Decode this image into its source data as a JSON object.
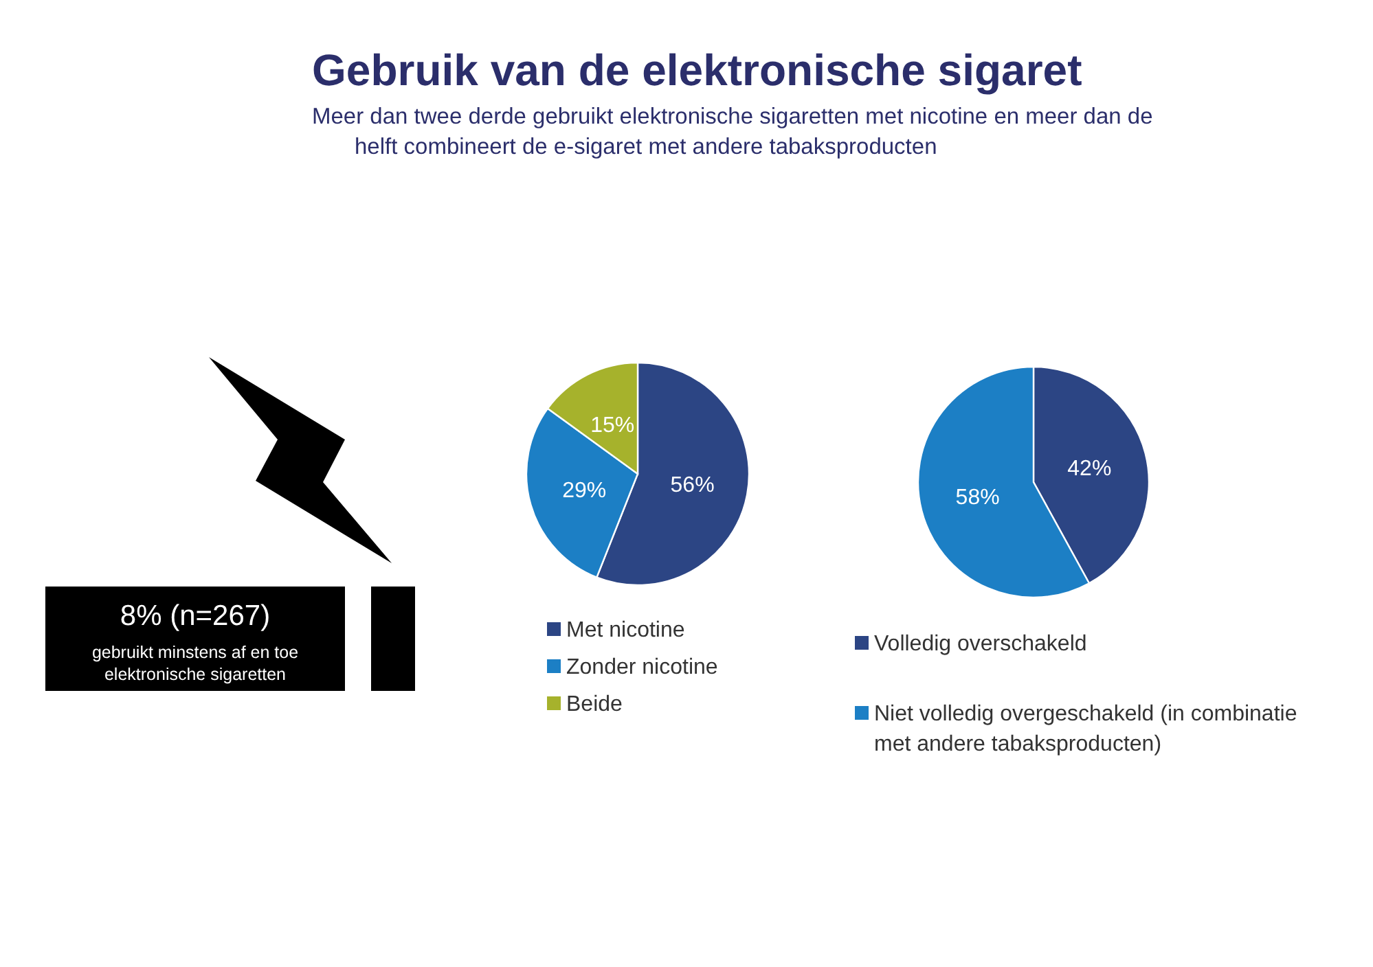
{
  "chart_data": [
    {
      "type": "other",
      "title": "Gebruik van de elektronische sigaret",
      "subtitle": "Meer dan twee derde gebruikt elektronische sigaretten met nicotine en meer dan de helft combineert de e-sigaret met andere tabaksproducten",
      "annotations": [
        "8% (n=267)",
        "gebruikt minstens af en toe elektronische sigaretten"
      ]
    },
    {
      "type": "pie",
      "categories": [
        "Met nicotine",
        "Zonder nicotine",
        "Beide"
      ],
      "values": [
        56,
        29,
        15
      ],
      "colors": [
        "#2c4584",
        "#1c7fc5",
        "#a6b22c"
      ],
      "value_labels": [
        "56%",
        "29%",
        "15%"
      ],
      "legend": "bottom"
    },
    {
      "type": "pie",
      "categories": [
        "Volledig overschakeld",
        "Niet volledig overgeschakeld (in combinatie met andere tabaksproducten)"
      ],
      "values": [
        42,
        58
      ],
      "colors": [
        "#2c4584",
        "#1c7fc5"
      ],
      "value_labels": [
        "42%",
        "58%"
      ],
      "legend": "bottom"
    }
  ]
}
